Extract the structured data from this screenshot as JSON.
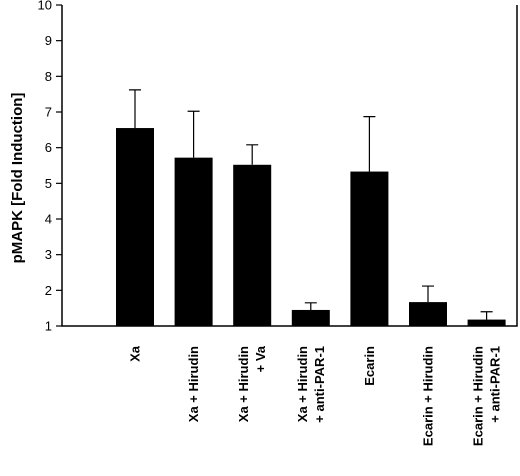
{
  "chart_data": {
    "type": "bar",
    "title": "",
    "xlabel": "",
    "ylabel": "pMAPK [Fold Induction]",
    "ylim": [
      1,
      10
    ],
    "yticks": [
      1,
      2,
      3,
      4,
      5,
      6,
      7,
      8,
      9,
      10
    ],
    "grid": false,
    "legend": "none",
    "bar_color": "#000000",
    "categories": [
      [
        "Xa"
      ],
      [
        "Xa + Hirudin"
      ],
      [
        "Xa + Hirudin",
        "+ Va"
      ],
      [
        "Xa + Hirudin",
        "+ anti-PAR-1"
      ],
      [
        "Ecarin"
      ],
      [
        "Ecarin + Hirudin"
      ],
      [
        "Ecarin + Hirudin",
        "+ anti-PAR-1"
      ]
    ],
    "values": [
      6.55,
      5.72,
      5.52,
      1.45,
      5.33,
      1.67,
      1.18
    ],
    "error_upper": [
      7.62,
      7.02,
      6.08,
      1.65,
      6.87,
      2.12,
      1.4
    ]
  }
}
